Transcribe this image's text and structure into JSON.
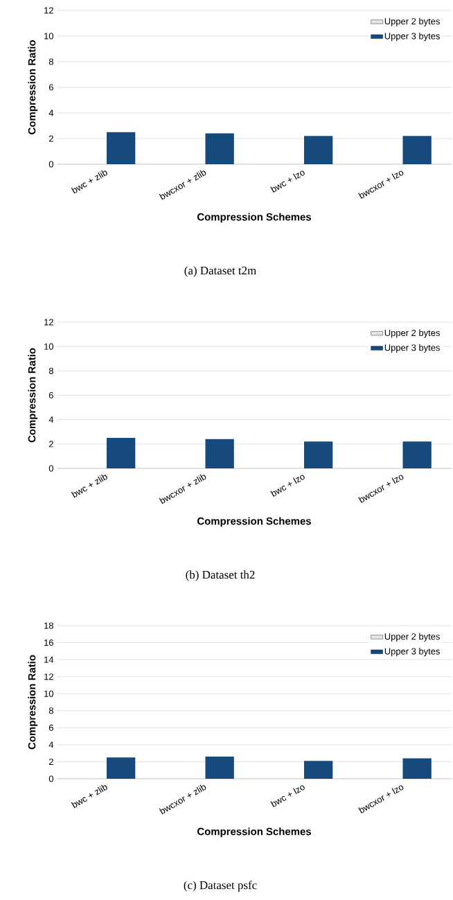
{
  "chart_data": [
    {
      "type": "bar",
      "xlabel": "Compression Schemes",
      "ylabel": "Compression Ratio",
      "categories": [
        "bwc + zlib",
        "bwcxor + zlib",
        "bwc + lzo",
        "bwcxor + lzo"
      ],
      "series": [
        {
          "name": "Upper 2 bytes",
          "color": "#1f497d",
          "values": [
            null,
            null,
            null,
            null
          ]
        },
        {
          "name": "Upper 3 bytes",
          "color": "#16497c",
          "values": [
            2.5,
            2.4,
            2.2,
            2.2
          ]
        }
      ],
      "ylim": [
        0,
        12
      ],
      "yticks": [
        0,
        2,
        4,
        6,
        8,
        10,
        12
      ],
      "grid": "y",
      "legend": "top right",
      "annotations": [
        "(a) Dataset t2m"
      ]
    },
    {
      "type": "bar",
      "xlabel": "Compression Schemes",
      "ylabel": "Compression Ratio",
      "categories": [
        "bwc + zlib",
        "bwcxor + zlib",
        "bwc + lzo",
        "bwcxor + lzo"
      ],
      "series": [
        {
          "name": "Upper 2 bytes",
          "color": "#1f497d",
          "values": [
            null,
            null,
            null,
            null
          ]
        },
        {
          "name": "Upper 3 bytes",
          "color": "#16497c",
          "values": [
            2.5,
            2.4,
            2.2,
            2.2
          ]
        }
      ],
      "ylim": [
        0,
        12
      ],
      "yticks": [
        0,
        2,
        4,
        6,
        8,
        10,
        12
      ],
      "grid": "y",
      "legend": "top right",
      "annotations": [
        "(b) Dataset th2"
      ]
    },
    {
      "type": "bar",
      "xlabel": "Compression Schemes",
      "ylabel": "Compression Ratio",
      "categories": [
        "bwc + zlib",
        "bwcxor + zlib",
        "bwc + lzo",
        "bwcxor + lzo"
      ],
      "series": [
        {
          "name": "Upper 2 bytes",
          "color": "#1f497d",
          "values": [
            null,
            null,
            null,
            null
          ]
        },
        {
          "name": "Upper 3 bytes",
          "color": "#16497c",
          "values": [
            2.5,
            2.6,
            2.1,
            2.4
          ]
        }
      ],
      "ylim": [
        0,
        18
      ],
      "yticks": [
        0,
        2,
        4,
        6,
        8,
        10,
        12,
        14,
        16,
        18
      ],
      "grid": "y",
      "legend": "top right",
      "annotations": [
        "(c) Dataset psfc"
      ]
    }
  ]
}
